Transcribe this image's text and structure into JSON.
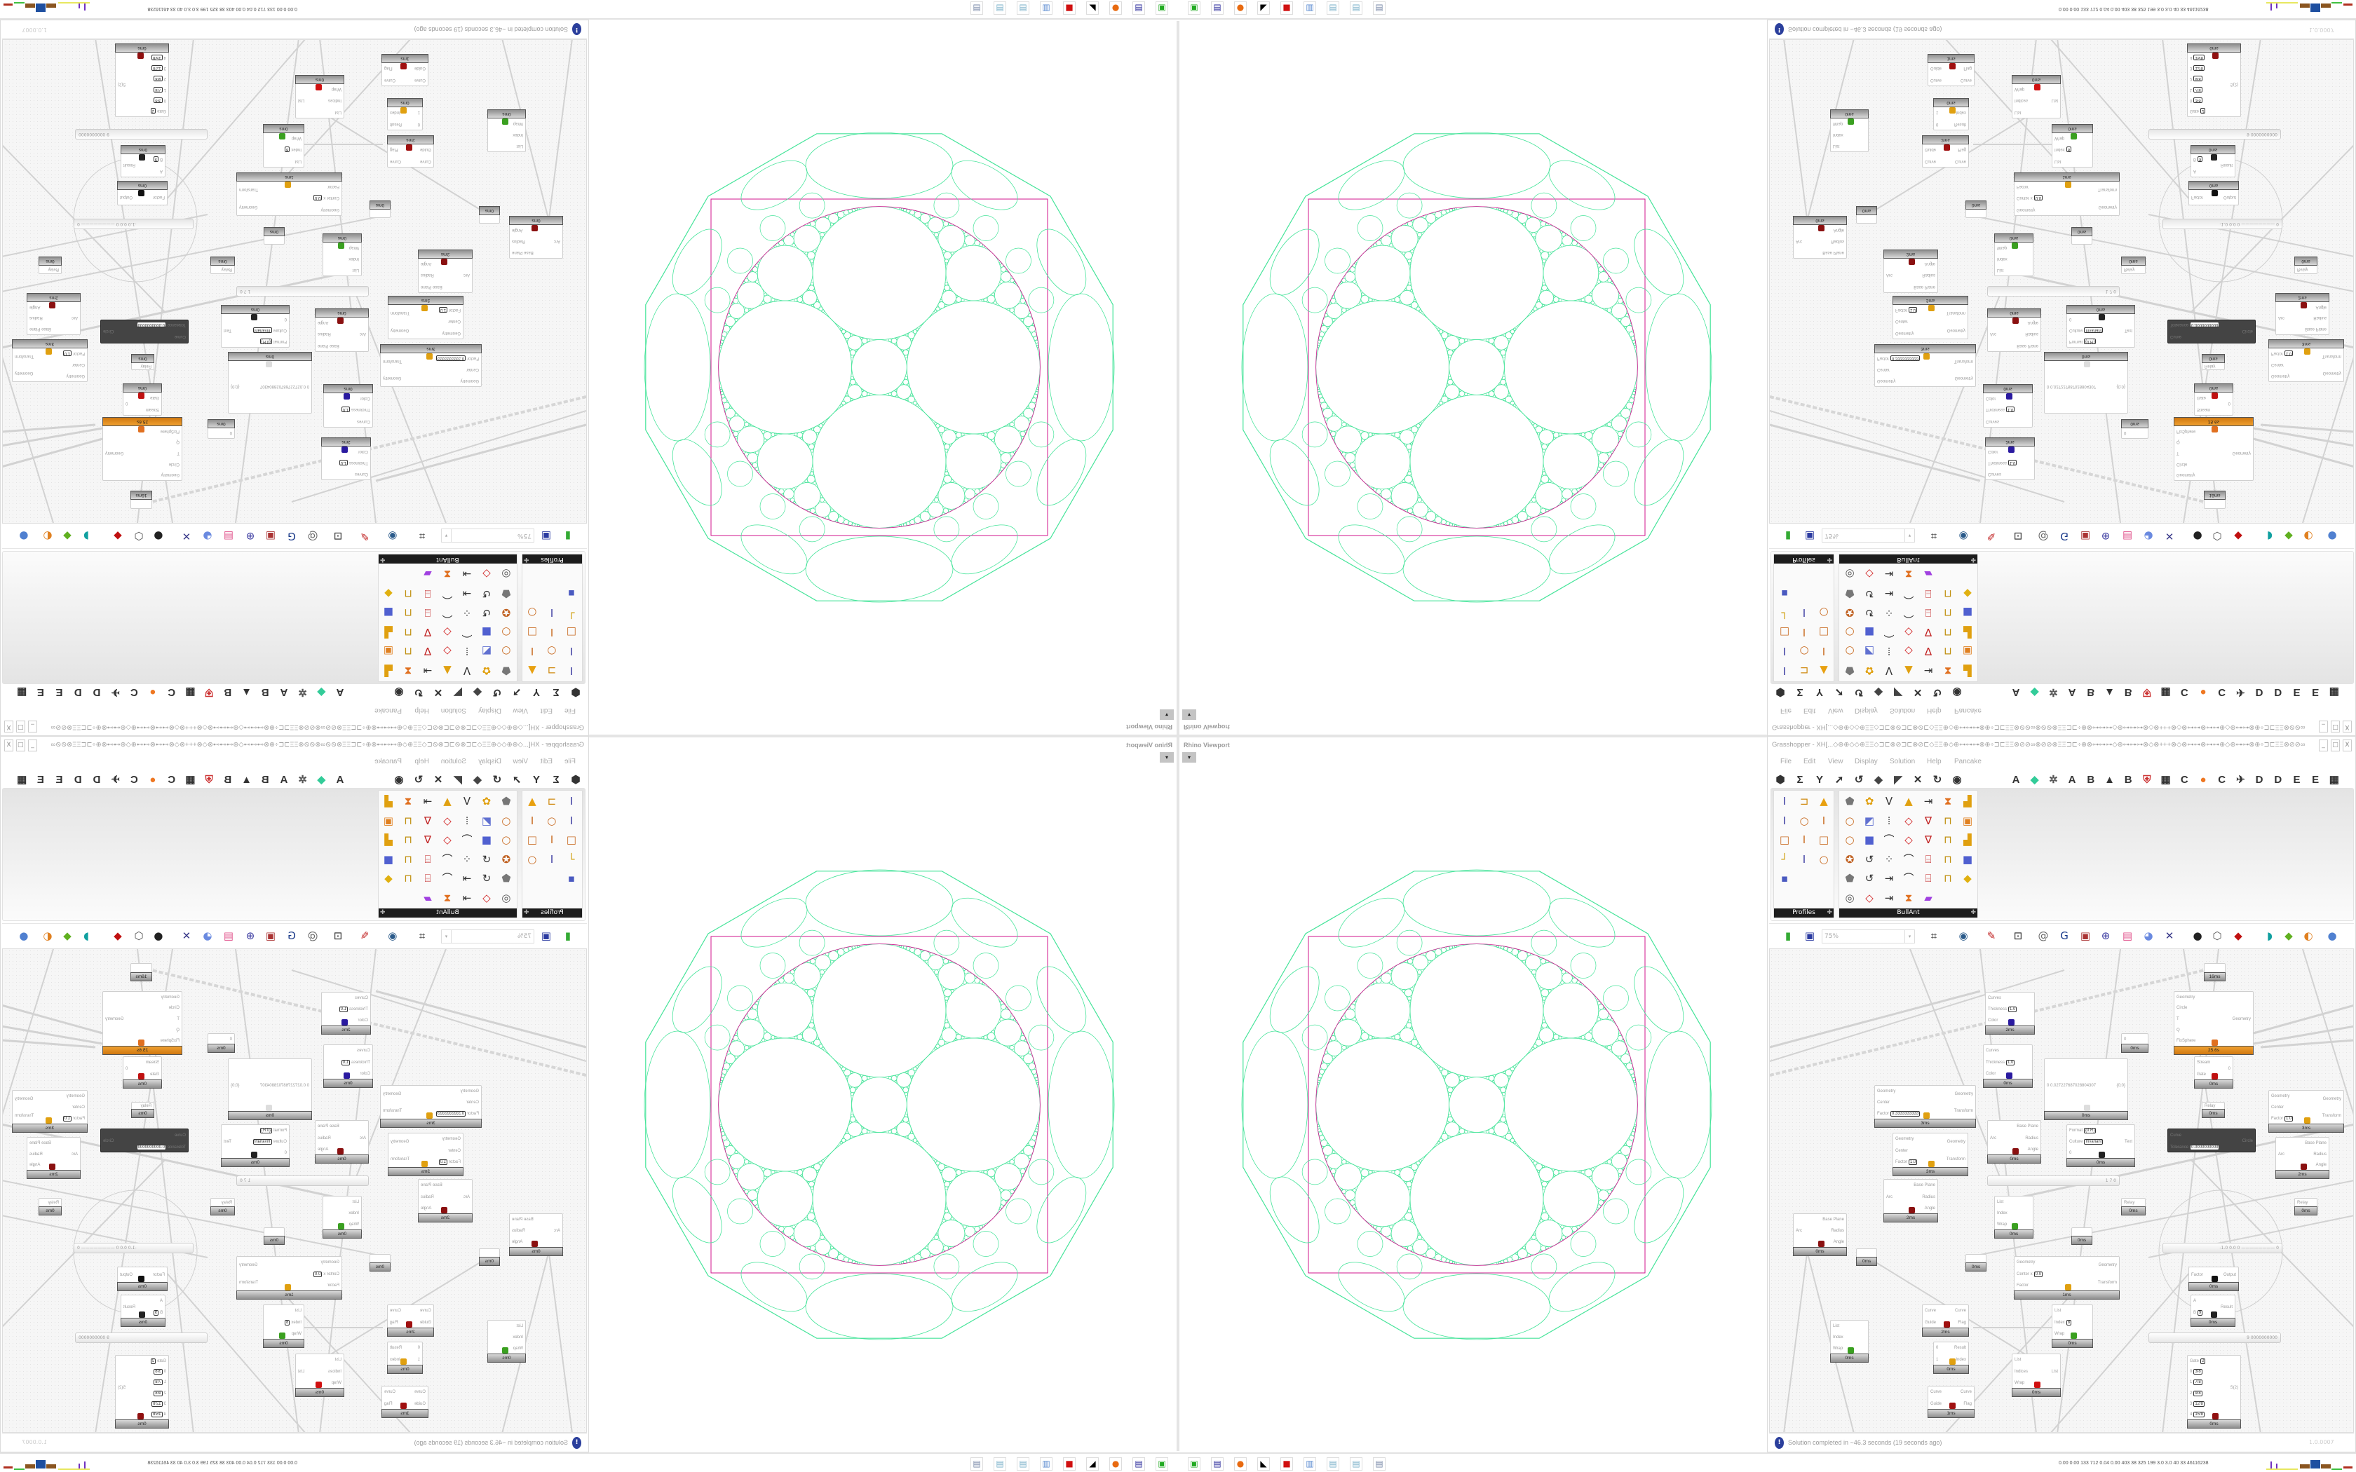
{
  "viewport": {
    "title": "Rhino Viewport",
    "dropdown_icon": "caret-down-icon",
    "colors": {
      "circles": "#46e49a",
      "construction": "#d0168e"
    }
  },
  "gh": {
    "title": "Grasshopper - XH[...◇⊕⊕◇◇⊕ΞΞ◇⊐⊏⊗⊘⊐⊏⊗⊘⊏◇ΞΞ⊕◇⊕⊶⊶⊶⊗⊕÷⊐⊏ΞΞ⊗⊘⊘∞⊗⊘⊘⊗ΞΞ⊐⊏÷⊕⊗⊶⊶⊶◇⊕⊶⊶⊶⊗◇⊗+++⊗◇⊗⊶⊶⊗⊶⊶⊕◇⊕⊶⊶⊗⊕÷⊐⊏ΞΞ⊗⊘⊘∞⊕...",
    "window_buttons": [
      "minimize-icon",
      "maximize-icon",
      "close-icon"
    ],
    "menu": [
      "File",
      "Edit",
      "View",
      "Display",
      "Solution",
      "Help",
      "Pancake"
    ],
    "tabs": [
      {
        "icon": "params-icon"
      },
      {
        "icon": "maths-icon"
      },
      {
        "icon": "sets-icon"
      },
      {
        "icon": "vector-icon"
      },
      {
        "icon": "curve-icon"
      },
      {
        "icon": "surface-icon"
      },
      {
        "icon": "mesh-icon"
      },
      {
        "icon": "intersect-icon"
      },
      {
        "icon": "transform-icon"
      },
      {
        "icon": "display-icon"
      },
      {
        "label": "A"
      },
      {
        "icon": "gem-icon"
      },
      {
        "icon": "gear-icon"
      },
      {
        "label": "A"
      },
      {
        "label": "B"
      },
      {
        "icon": "mountain-icon"
      },
      {
        "label": "B"
      },
      {
        "icon": "shield-icon"
      },
      {
        "icon": "grid-icon"
      },
      {
        "label": "C"
      },
      {
        "icon": "orange-circle-icon"
      },
      {
        "label": "C"
      },
      {
        "icon": "bird-icon"
      },
      {
        "label": "D"
      },
      {
        "label": "D"
      },
      {
        "label": "E"
      },
      {
        "label": "E"
      },
      {
        "icon": "grid-icon"
      }
    ],
    "palette": {
      "groups": [
        {
          "name": "Profiles",
          "cols": 3,
          "icons": [
            "ibeam-profile-icon",
            "channel-icon",
            "flame-icon",
            "ibeam-profile-icon",
            "ring-icon",
            "i-section-icon",
            "box-section-icon",
            "i-section-icon",
            "box-section-icon",
            "angle-icon",
            "ibeam-profile-icon",
            "ring-icon",
            "points-icon"
          ]
        },
        {
          "name": "BullAnt",
          "cols": 7,
          "icons": [
            "solid-icon",
            "flower-icon",
            "vertex-icon",
            "cone-icon",
            "flow-icon",
            "warp-icon",
            "chart-icon",
            "ring-icon",
            "plane-icon",
            "columns-icon",
            "quad-icon",
            "funnel-icon",
            "lock-icon",
            "box-orange-icon",
            "ring-icon",
            "cube-blue-icon",
            "polyline-icon",
            "quad-icon",
            "funnel-icon",
            "lock-icon",
            "chart-icon",
            "ball-icon",
            "curve-icon",
            "nodes-icon",
            "polyline-icon",
            "frame-icon",
            "lock-icon",
            "cube-blue-icon",
            "solid-icon",
            "curve-icon",
            "flow-icon",
            "polyline-icon",
            "frame-icon",
            "lock-icon",
            "diamond-icon",
            "dial-icon",
            "quad-icon",
            "flow-icon",
            "warp-icon",
            "rainbow-icon"
          ]
        }
      ]
    },
    "toolbar": {
      "zoom": "75%",
      "zoom_dropdown": "caret-down-icon",
      "icons": [
        "open-file-icon",
        "save-icon",
        "zoom-extents-icon",
        "eye-icon",
        "sketch-icon",
        "plugin-icon",
        "at-icon",
        "gha-icon",
        "screen-icon",
        "search-icon",
        "package-icon",
        "bulb-icon",
        "wires-icon",
        "bomb-icon",
        "hex-icon",
        "red-solid-icon",
        "teal-shape-icon",
        "green-shape-icon",
        "sphere-icon",
        "blue-sphere-icon"
      ]
    },
    "canvas": {
      "nodes": [
        {
          "inputs": [
            {
              "l": "Curves"
            },
            {
              "l": "Thickness",
              "v": "1.0"
            },
            {
              "l": "Color"
            }
          ],
          "outputs": [],
          "icon": "custom-preview-icon",
          "footer": "2ms"
        },
        {
          "inputs": [
            {
              "l": "Curves"
            },
            {
              "l": "Thickness",
              "v": "1.0"
            },
            {
              "l": "Color"
            }
          ],
          "outputs": [],
          "icon": "custom-preview-icon",
          "footer": "0ms"
        },
        {
          "inputs": [
            {
              "l": "Geometry"
            },
            {
              "l": "Center"
            },
            {
              "l": "Factor",
              "v": "0.3333333333"
            }
          ],
          "outputs": [
            {
              "l": "Geometry"
            },
            {
              "l": "Transform"
            }
          ],
          "icon": "scale-icon",
          "footer": "3ms"
        },
        {
          "inputs": [
            {
              "l": "Geometry"
            },
            {
              "l": "Center"
            },
            {
              "l": "Factor",
              "v": "1.0"
            }
          ],
          "outputs": [
            {
              "l": "Geometry"
            },
            {
              "l": "Transform"
            }
          ],
          "icon": "scale-icon",
          "footer": "3ms"
        },
        {
          "inputs": [
            {
              "l": "Arc"
            }
          ],
          "outputs": [
            {
              "l": "Base Plane"
            },
            {
              "l": "Radius"
            },
            {
              "l": "Angle"
            }
          ],
          "icon": "arc-icon",
          "footer": "0ms"
        },
        {
          "inputs": [
            {
              "l": "0  0.027227687028804307"
            }
          ],
          "outputs": [
            {
              "l": "{0;0}"
            }
          ],
          "icon": "panel-icon",
          "footer": "0ms"
        },
        {
          "inputs": [
            {
              "l": "Format",
              "v": "{0:R}"
            },
            {
              "l": "Culture",
              "v": "Invariant"
            },
            {
              "l": "0"
            }
          ],
          "outputs": [
            {
              "l": "Text"
            }
          ],
          "icon": "format-icon",
          "footer": "0ms"
        },
        {
          "inputs": [
            {
              "l": "0"
            }
          ],
          "outputs": [],
          "footer": "0ms"
        },
        {
          "inputs": [
            {
              "l": "Geometry"
            },
            {
              "l": "Circle"
            },
            {
              "l": "T"
            },
            {
              "l": "Q"
            },
            {
              "l": "FixSphere"
            }
          ],
          "outputs": [
            {
              "l": "Geometry"
            }
          ],
          "icon": "kangaroo-icon",
          "footer": "25.6s"
        },
        {
          "inputs": [
            {
              "l": "Stream"
            },
            {
              "l": "Gate"
            }
          ],
          "outputs": [
            {
              "l": "0"
            }
          ],
          "icon": "stream-gate-icon",
          "footer": "0ms"
        },
        {
          "inputs": [
            {
              "l": "Relay"
            }
          ],
          "outputs": [],
          "footer": "0ms"
        },
        {
          "inputs": [
            {
              "l": "Curve"
            },
            {
              "l": "Tolerance",
              "v": "0.0000000000"
            }
          ],
          "outputs": [
            {
              "l": "Circle"
            }
          ],
          "footer": ""
        },
        {
          "inputs": [
            {
              "l": "Geometry"
            },
            {
              "l": "Center"
            },
            {
              "l": "Factor",
              "v": "1.0"
            }
          ],
          "outputs": [
            {
              "l": "Geometry"
            },
            {
              "l": "Transform"
            }
          ],
          "icon": "scale-icon",
          "footer": "3ms"
        },
        {
          "inputs": [
            {
              "l": "Arc"
            }
          ],
          "outputs": [
            {
              "l": "Base Plane"
            },
            {
              "l": "Radius"
            },
            {
              "l": "Angle"
            }
          ],
          "icon": "arc-icon",
          "footer": "2ms"
        },
        {
          "inputs": [],
          "outputs": [],
          "footer": "16ms"
        },
        {
          "inputs": [
            {
              "l": "Arc"
            }
          ],
          "outputs": [
            {
              "l": "Base Plane"
            },
            {
              "l": "Radius"
            },
            {
              "l": "Angle"
            }
          ],
          "icon": "arc-icon",
          "footer": "0ms"
        },
        {
          "inputs": [
            {
              "l": "List"
            },
            {
              "l": "Index"
            },
            {
              "l": "Wrap"
            }
          ],
          "outputs": [],
          "icon": "list-item-icon",
          "footer": "0ms"
        },
        {
          "inputs": [
            {
              "l": "Geometry"
            },
            {
              "l": "Center  x",
              "v": "0.0"
            },
            {
              "l": "Factor"
            }
          ],
          "outputs": [
            {
              "l": "Geometry"
            },
            {
              "l": "Transform"
            }
          ],
          "icon": "scale-icon",
          "footer": "1ms"
        },
        {
          "inputs": [
            {
              "l": "Factor"
            }
          ],
          "outputs": [
            {
              "l": "Output"
            }
          ],
          "icon": "pi-icon",
          "footer": "0ms"
        },
        {
          "inputs": [
            {
              "l": "A"
            },
            {
              "l": "B",
              "v": "9"
            }
          ],
          "outputs": [
            {
              "l": "Result"
            }
          ],
          "icon": "division-icon",
          "footer": "0ms"
        },
        {
          "inputs": [
            {
              "l": "Gate",
              "v": "2"
            },
            {
              "l": "0",
              "v": "3/8"
            },
            {
              "l": "1",
              "v": "7/8"
            },
            {
              "l": "2",
              "v": "9/8"
            },
            {
              "l": "3",
              "v": "12/8"
            },
            {
              "l": "4",
              "v": "15/8"
            }
          ],
          "outputs": [
            {
              "l": "S(2)"
            }
          ],
          "icon": "stream-filter-icon",
          "footer": "0ms"
        },
        {
          "inputs": [
            {
              "l": "Curve"
            },
            {
              "l": "Guide"
            }
          ],
          "outputs": [
            {
              "l": "Curve"
            },
            {
              "l": "Flag"
            }
          ],
          "icon": "flip-curve-icon",
          "footer": "2ms"
        },
        {
          "inputs": [
            {
              "l": "List"
            },
            {
              "l": "Index"
            },
            {
              "l": "Wrap"
            }
          ],
          "outputs": [],
          "icon": "list-item-icon",
          "footer": "0ms"
        },
        {
          "inputs": [
            {
              "l": "0"
            },
            {
              "l": "1"
            }
          ],
          "outputs": [
            {
              "l": "Result"
            },
            {
              "l": "Index"
            }
          ],
          "icon": "pick-icon",
          "footer": "0ms"
        },
        {
          "inputs": [
            {
              "l": "Curve"
            },
            {
              "l": "Guide"
            }
          ],
          "outputs": [
            {
              "l": "Curve"
            },
            {
              "l": "Flag"
            }
          ],
          "icon": "flip-curve-icon",
          "footer": "1ms"
        },
        {
          "inputs": [
            {
              "l": "List"
            },
            {
              "l": "Index",
              "v": "8"
            },
            {
              "l": "Wrap"
            }
          ],
          "outputs": [],
          "icon": "list-item-icon",
          "footer": "0ms"
        },
        {
          "inputs": [
            {
              "l": "List"
            },
            {
              "l": "Indices"
            },
            {
              "l": "Wrap"
            }
          ],
          "outputs": [
            {
              "l": "List"
            }
          ],
          "icon": "cull-index-icon",
          "footer": "0ms"
        },
        {
          "inputs": [
            {
              "l": "Relay"
            }
          ],
          "outputs": [],
          "footer": "0ms"
        },
        {
          "inputs": [
            {
              "l": "Relay"
            }
          ],
          "outputs": [],
          "footer": "0ms"
        },
        {
          "inputs": [
            {
              "l": "Arc"
            }
          ],
          "outputs": [
            {
              "l": "Base Plane"
            },
            {
              "l": "Radius"
            },
            {
              "l": "Angle"
            }
          ],
          "icon": "arc-icon",
          "footer": "2ms"
        },
        {
          "inputs": [],
          "outputs": [],
          "footer": "0ms"
        },
        {
          "inputs": [],
          "outputs": [],
          "footer": "0ms"
        },
        {
          "inputs": [],
          "outputs": [],
          "footer": "0ms"
        }
      ],
      "sliders": [
        {
          "text": "1 7 0"
        },
        {
          "text": "-1.0  0.0  0 ———————— 0"
        },
        {
          "text": "9 0000000000"
        }
      ]
    },
    "status": {
      "icon": "info-icon",
      "message": "Solution completed in ~46.3 seconds (19 seconds ago)",
      "version": "1.0.0007"
    }
  },
  "taskbar": {
    "icons": [
      "rhino-icon",
      "save64-icon",
      "firefox-icon",
      "inkscape-icon",
      "red-app-icon",
      "calculator-icon",
      "notepad-icon",
      "notepad-icon",
      "document-icon"
    ],
    "stats": "0.00 0.00 133 712 0.04 0.00 403  38  325  199  3.0  3.0  40  33  46116238"
  }
}
